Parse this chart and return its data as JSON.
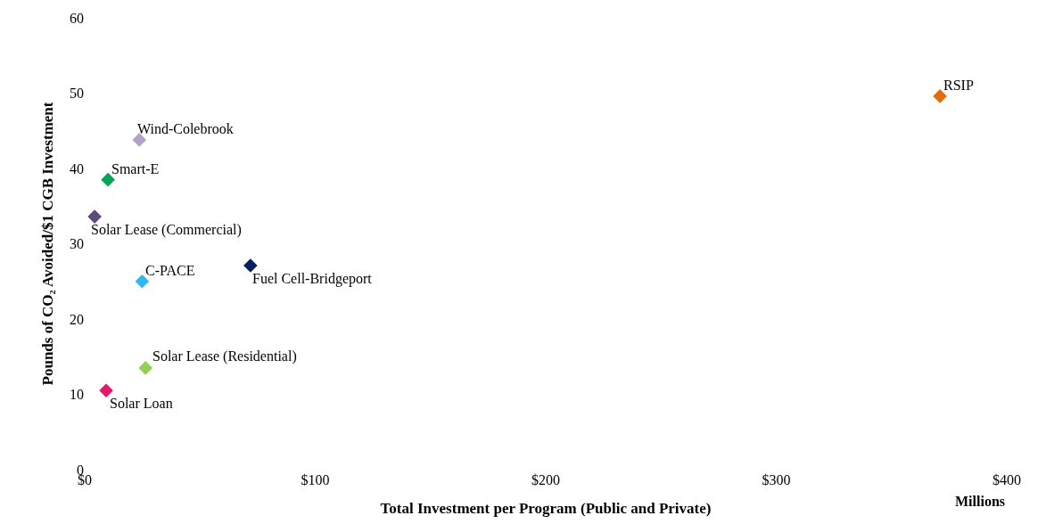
{
  "chart_data": {
    "type": "scatter",
    "xlabel": "Total Investment per Program (Public and Private)",
    "ylabel": "Pounds of CO₂ Avoided/$1 CGB Investment",
    "x": [
      371,
      23.7,
      10.1,
      4.3,
      24.9,
      71.9,
      26.4,
      9.3
    ],
    "values": [
      49.6,
      43.8,
      38.5,
      33.6,
      25.0,
      27.1,
      13.5,
      10.5
    ],
    "colors": [
      "#e46c0a",
      "#b3a2c7",
      "#00a651",
      "#604a7b",
      "#31b6ef",
      "#002060",
      "#92d050",
      "#e6156f"
    ],
    "marker": "diamond",
    "grid": false,
    "xlim": [
      0,
      400
    ],
    "xticks": [
      {
        "value": 0,
        "label": "$0"
      },
      {
        "value": 100,
        "label": "$100"
      },
      {
        "value": 200,
        "label": "$200"
      },
      {
        "value": 300,
        "label": "$300"
      },
      {
        "value": 400,
        "label": "$400"
      }
    ],
    "ylim": [
      0,
      60
    ],
    "yticks": [
      0,
      10,
      20,
      30,
      40,
      50,
      60
    ],
    "annotations": [
      {
        "text": "RSIP",
        "x": 371,
        "y": 49.6
      },
      {
        "text": "Wind-Colebrook",
        "x": 23.7,
        "y": 43.8
      },
      {
        "text": "Smart-E",
        "x": 10.1,
        "y": 38.5
      },
      {
        "text": "Solar Lease (Commercial)",
        "x": 4.3,
        "y": 33.6
      },
      {
        "text": "C-PACE",
        "x": 24.9,
        "y": 25.0
      },
      {
        "text": "Fuel Cell-Bridgeport",
        "x": 71.9,
        "y": 27.1
      },
      {
        "text": "Solar Lease (Residential)",
        "x": 26.4,
        "y": 13.5
      },
      {
        "text": "Solar Loan",
        "x": 9.3,
        "y": 10.5
      },
      "Millions"
    ]
  }
}
